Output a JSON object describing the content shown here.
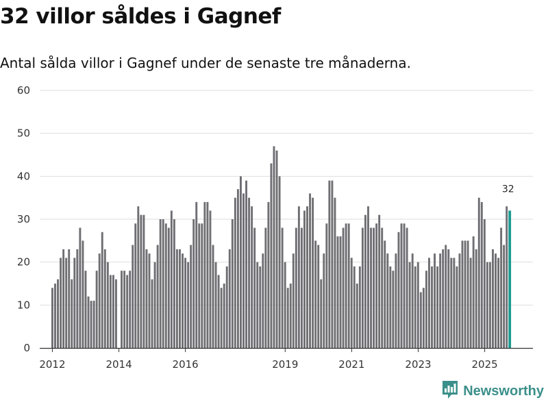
{
  "header": {
    "title": "32 villor såldes i Gagnef",
    "subtitle": "Antal sålda villor i Gagnef under de senaste tre månaderna."
  },
  "brand": {
    "name": "Newsworthy",
    "icon": "newsworthy-logo-icon",
    "color": "#3b8f8a"
  },
  "colors": {
    "bar": "#6e6e73",
    "highlight": "#1a9a8f",
    "grid": "#dddddd",
    "axis": "#333333"
  },
  "chart_data": {
    "type": "bar",
    "title": "32 villor såldes i Gagnef",
    "subtitle": "Antal sålda villor i Gagnef under de senaste tre månaderna.",
    "xlabel": "",
    "ylabel": "",
    "ylim": [
      0,
      60
    ],
    "yticks": [
      0,
      10,
      20,
      30,
      40,
      50,
      60
    ],
    "x_start": 2012.0,
    "x_step": 0.0833,
    "xlim": [
      2011.62,
      2026.45
    ],
    "xticks": [
      {
        "value": 2012,
        "label": "2012"
      },
      {
        "value": 2014,
        "label": "2014"
      },
      {
        "value": 2016,
        "label": "2016"
      },
      {
        "value": 2019,
        "label": "2019"
      },
      {
        "value": 2021,
        "label": "2021"
      },
      {
        "value": 2023,
        "label": "2023"
      },
      {
        "value": 2025,
        "label": "2025"
      }
    ],
    "grid": true,
    "legend": "none",
    "values": [
      14,
      15,
      16,
      21,
      23,
      21,
      23,
      16,
      21,
      23,
      28,
      25,
      18,
      12,
      11,
      11,
      18,
      22,
      27,
      23,
      20,
      17,
      17,
      16,
      null,
      18,
      18,
      17,
      18,
      24,
      29,
      33,
      31,
      31,
      23,
      22,
      16,
      20,
      24,
      30,
      30,
      29,
      28,
      32,
      30,
      23,
      23,
      22,
      21,
      20,
      24,
      30,
      34,
      29,
      29,
      34,
      34,
      32,
      24,
      20,
      17,
      14,
      15,
      19,
      23,
      30,
      35,
      37,
      40,
      36,
      39,
      35,
      33,
      28,
      20,
      19,
      22,
      28,
      34,
      43,
      47,
      46,
      40,
      28,
      20,
      14,
      15,
      22,
      28,
      33,
      28,
      32,
      33,
      36,
      35,
      25,
      24,
      16,
      22,
      29,
      39,
      39,
      35,
      26,
      26,
      28,
      29,
      29,
      21,
      19,
      15,
      19,
      28,
      31,
      33,
      28,
      28,
      29,
      31,
      28,
      25,
      22,
      19,
      18,
      22,
      27,
      29,
      29,
      28,
      20,
      22,
      19,
      20,
      13,
      14,
      18,
      21,
      19,
      22,
      19,
      22,
      23,
      24,
      23,
      21,
      21,
      19,
      22,
      25,
      25,
      25,
      21,
      26,
      23,
      35,
      34,
      30,
      20,
      20,
      23,
      22,
      21,
      28,
      24,
      33,
      32
    ],
    "highlight_last": true,
    "annotations": [
      {
        "text": "32",
        "target": "last_bar"
      }
    ]
  }
}
